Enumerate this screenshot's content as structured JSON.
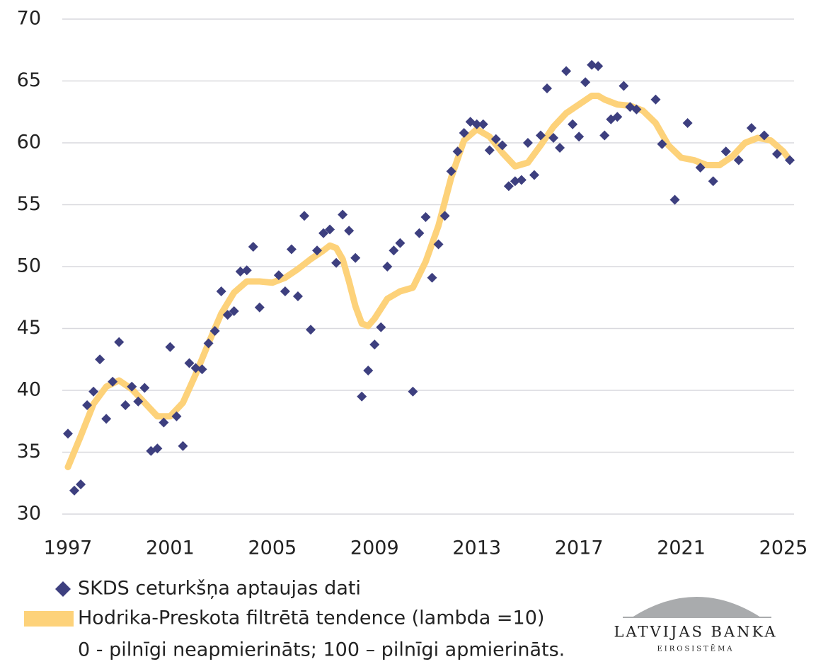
{
  "chart_data": {
    "type": "scatter",
    "series": [
      {
        "name": "SKDS ceturkšņa aptaujas dati",
        "color": "#3d3f7f",
        "marker": "diamond",
        "x": [
          1997,
          1997.25,
          1997.5,
          1997.75,
          1998,
          1998.25,
          1998.5,
          1998.75,
          1999,
          1999.25,
          1999.5,
          1999.75,
          2000,
          2000.25,
          2000.5,
          2000.75,
          2001,
          2001.25,
          2001.5,
          2001.75,
          2002,
          2002.25,
          2002.5,
          2002.75,
          2003,
          2003.25,
          2003.5,
          2003.75,
          2004,
          2004.25,
          2004.5,
          2005.25,
          2005.5,
          2005.75,
          2006,
          2006.25,
          2006.5,
          2006.75,
          2007,
          2007.25,
          2007.5,
          2007.75,
          2008,
          2008.25,
          2008.5,
          2008.75,
          2009,
          2009.25,
          2009.5,
          2009.75,
          2010,
          2010.5,
          2010.75,
          2011,
          2011.25,
          2011.5,
          2011.75,
          2012,
          2012.25,
          2012.5,
          2012.75,
          2013,
          2013.25,
          2013.5,
          2013.75,
          2014,
          2014.25,
          2014.5,
          2014.75,
          2015,
          2015.25,
          2015.5,
          2015.75,
          2016,
          2016.25,
          2016.5,
          2016.75,
          2017,
          2017.25,
          2017.5,
          2017.75,
          2018,
          2018.25,
          2018.5,
          2018.75,
          2019,
          2019.25,
          2020,
          2020.25,
          2020.75,
          2021.25,
          2021.75,
          2022.25,
          2022.75,
          2023.25,
          2023.75,
          2024.25,
          2024.75,
          2025.25
        ],
        "values": [
          36.5,
          31.9,
          32.4,
          38.8,
          39.9,
          42.5,
          37.7,
          40.7,
          43.9,
          38.8,
          40.3,
          39.1,
          40.2,
          35.1,
          35.3,
          37.4,
          43.5,
          37.9,
          35.5,
          42.2,
          41.8,
          41.7,
          43.8,
          44.8,
          48.0,
          46.1,
          46.4,
          49.6,
          49.7,
          51.6,
          46.7,
          49.3,
          48.0,
          51.4,
          47.6,
          54.1,
          44.9,
          51.3,
          52.7,
          53.0,
          50.3,
          54.2,
          52.9,
          50.7,
          39.5,
          41.6,
          43.7,
          45.1,
          50.0,
          51.3,
          51.9,
          39.9,
          52.7,
          54.0,
          49.1,
          51.8,
          54.1,
          57.7,
          59.3,
          60.8,
          61.7,
          61.5,
          61.5,
          59.4,
          60.3,
          59.8,
          56.5,
          56.9,
          57.0,
          60.0,
          57.4,
          60.6,
          64.4,
          60.4,
          59.6,
          65.8,
          61.5,
          60.5,
          64.9,
          66.3,
          66.2,
          60.6,
          61.9,
          62.1,
          64.6,
          62.9,
          62.7,
          63.5,
          59.9,
          55.4,
          61.6,
          58.0,
          56.9,
          59.3,
          58.6,
          61.2,
          60.6,
          59.1,
          58.6
        ]
      },
      {
        "name": "Hodrika-Preskota filtrētā tendence (lambda =10)",
        "color": "#fdd27a",
        "marker": "line",
        "x": [
          1997,
          1997.5,
          1998,
          1998.5,
          1999,
          1999.5,
          2000,
          2000.5,
          2001,
          2001.5,
          2002,
          2002.5,
          2003,
          2003.5,
          2004,
          2004.5,
          2005,
          2005.5,
          2006,
          2006.5,
          2007,
          2007.25,
          2007.5,
          2007.75,
          2008,
          2008.25,
          2008.5,
          2008.75,
          2009,
          2009.5,
          2010,
          2010.5,
          2011,
          2011.5,
          2012,
          2012.5,
          2013,
          2013.5,
          2014,
          2014.5,
          2015,
          2015.5,
          2016,
          2016.5,
          2017,
          2017.5,
          2017.75,
          2018,
          2018.5,
          2019,
          2019.5,
          2020,
          2020.5,
          2021,
          2021.5,
          2022,
          2022.5,
          2023,
          2023.5,
          2024,
          2024.5,
          2025,
          2025.25
        ],
        "values": [
          33.8,
          36.3,
          38.9,
          40.3,
          40.8,
          40.1,
          39.0,
          37.9,
          37.9,
          39.0,
          41.3,
          43.8,
          46.2,
          47.9,
          48.8,
          48.8,
          48.7,
          49.1,
          49.8,
          50.6,
          51.3,
          51.7,
          51.5,
          50.6,
          48.8,
          46.8,
          45.4,
          45.2,
          45.8,
          47.4,
          48.0,
          48.3,
          50.4,
          53.3,
          57.2,
          60.2,
          61.1,
          60.5,
          59.2,
          58.1,
          58.4,
          59.8,
          61.3,
          62.4,
          63.1,
          63.8,
          63.8,
          63.5,
          63.1,
          63.0,
          62.6,
          61.6,
          59.8,
          58.8,
          58.6,
          58.2,
          58.2,
          58.9,
          60.0,
          60.4,
          60.2,
          59.3,
          58.6
        ]
      }
    ],
    "note": "0 - pilnīgi neapmierināts;  100 – pilnīgi apmierināts.",
    "xlim": [
      1997,
      2025
    ],
    "xticks": [
      1997,
      2001,
      2005,
      2009,
      2013,
      2017,
      2021,
      2025
    ],
    "ylim": [
      30,
      70
    ],
    "yticks": [
      30,
      35,
      40,
      45,
      50,
      55,
      60,
      65,
      70
    ],
    "grid": true
  },
  "logo": {
    "name": "LATVIJAS BANKA",
    "subtitle": "EIROSISTĒMA"
  }
}
